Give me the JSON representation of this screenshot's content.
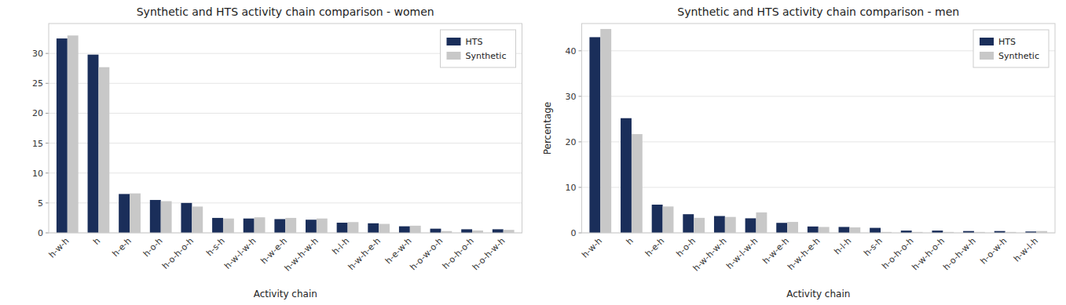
{
  "chart_data": [
    {
      "type": "bar",
      "title": "Synthetic and HTS activity chain comparison - women",
      "xlabel": "Activity chain",
      "categories": [
        "h-w-h",
        "h",
        "h-e-h",
        "h-o-h",
        "h-o-h-o-h",
        "h-s-h",
        "h-w-l-w-h",
        "h-w-e-h",
        "h-w-h-w-h",
        "h-l-h",
        "h-w-h-e-h",
        "h-e-w-h",
        "h-o-w-o-h",
        "h-o-h-o-h",
        "h-o-h-w-h"
      ],
      "series": [
        {
          "name": "HTS",
          "color": "#1a2e5a",
          "values": [
            32.5,
            29.8,
            6.5,
            5.5,
            5.0,
            2.5,
            2.4,
            2.3,
            2.2,
            1.7,
            1.6,
            1.1,
            0.7,
            0.6,
            0.6
          ]
        },
        {
          "name": "Synthetic",
          "color": "#c8c8c8",
          "values": [
            33.0,
            27.7,
            6.6,
            5.3,
            4.4,
            2.4,
            2.6,
            2.5,
            2.4,
            1.8,
            1.5,
            1.2,
            0.3,
            0.4,
            0.5
          ]
        }
      ],
      "ylim": [
        0,
        35
      ],
      "yticks": [
        0,
        5,
        10,
        15,
        20,
        25,
        30
      ],
      "grid": true,
      "legend": "upper right"
    },
    {
      "type": "bar",
      "title": "Synthetic and HTS activity chain comparison - men",
      "xlabel": "Activity chain",
      "ylabel": "Percentage",
      "categories": [
        "h-w-h",
        "h",
        "h-e-h",
        "h-o-h",
        "h-w-h-w-h",
        "h-w-l-w-h",
        "h-w-e-h",
        "h-w-h-e-h",
        "h-l-h",
        "h-s-h",
        "h-o-h-o-h",
        "h-w-h-o-h",
        "h-o-h-w-h",
        "h-o-w-h",
        "h-w-l-h"
      ],
      "series": [
        {
          "name": "HTS",
          "color": "#1a2e5a",
          "values": [
            43.0,
            25.2,
            6.2,
            4.1,
            3.7,
            3.2,
            2.2,
            1.4,
            1.3,
            1.1,
            0.5,
            0.5,
            0.4,
            0.4,
            0.3
          ]
        },
        {
          "name": "Synthetic",
          "color": "#c8c8c8",
          "values": [
            44.8,
            21.7,
            5.8,
            3.3,
            3.5,
            4.5,
            2.4,
            1.3,
            1.2,
            0.2,
            0.2,
            0.2,
            0.2,
            0.2,
            0.4
          ]
        }
      ],
      "ylim": [
        0,
        46
      ],
      "yticks": [
        0,
        10,
        20,
        30,
        40
      ],
      "grid": true,
      "legend": "upper right"
    }
  ]
}
